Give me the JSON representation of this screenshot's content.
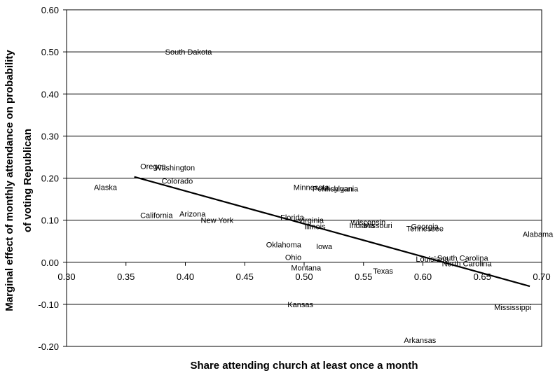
{
  "chart_data": {
    "type": "scatter",
    "title": "",
    "xlabel": "Share attending church at least once a month",
    "ylabel": "Marginal effect of monthly attendance on probability of voting Republican",
    "ylabel_lines": [
      "Marginal effect of monthly attendance on probability",
      "of voting Republican"
    ],
    "xlim": [
      0.3,
      0.7
    ],
    "ylim": [
      -0.2,
      0.6
    ],
    "x_ticks": [
      0.3,
      0.35,
      0.4,
      0.45,
      0.5,
      0.55,
      0.6,
      0.65,
      0.7
    ],
    "x_tick_labels": [
      "0.30",
      "0.35",
      "0.40",
      "0.45",
      "0.50",
      "0.55",
      "0.60",
      "0.65",
      "0.70"
    ],
    "y_ticks": [
      -0.2,
      -0.1,
      0.0,
      0.1,
      0.2,
      0.3,
      0.4,
      0.5,
      0.6
    ],
    "y_tick_labels": [
      "-0.20",
      "-0.10",
      "0.00",
      "0.10",
      "0.20",
      "0.30",
      "0.40",
      "0.50",
      "0.60"
    ],
    "grid": "horizontal",
    "legend": "none",
    "points": [
      {
        "label": "South Dakota",
        "x": 0.383,
        "y": 0.5
      },
      {
        "label": "Oregon",
        "x": 0.362,
        "y": 0.228
      },
      {
        "label": "Washington",
        "x": 0.374,
        "y": 0.225
      },
      {
        "label": "Colorado",
        "x": 0.38,
        "y": 0.193
      },
      {
        "label": "Alaska",
        "x": 0.323,
        "y": 0.178
      },
      {
        "label": "California",
        "x": 0.362,
        "y": 0.112
      },
      {
        "label": "Arizona",
        "x": 0.395,
        "y": 0.115
      },
      {
        "label": "New York",
        "x": 0.413,
        "y": 0.1
      },
      {
        "label": "Minnesota",
        "x": 0.491,
        "y": 0.178
      },
      {
        "label": "Pennsylvania",
        "x": 0.507,
        "y": 0.175
      },
      {
        "label": "Michigan",
        "x": 0.515,
        "y": 0.175
      },
      {
        "label": "Florida",
        "x": 0.48,
        "y": 0.107
      },
      {
        "label": "Virginia",
        "x": 0.495,
        "y": 0.1
      },
      {
        "label": "Illinois",
        "x": 0.5,
        "y": 0.085
      },
      {
        "label": "Wisconsin",
        "x": 0.539,
        "y": 0.095
      },
      {
        "label": "Indiana",
        "x": 0.538,
        "y": 0.088
      },
      {
        "label": "Missouri",
        "x": 0.55,
        "y": 0.088
      },
      {
        "label": "Georgia",
        "x": 0.59,
        "y": 0.085
      },
      {
        "label": "Tennessee",
        "x": 0.586,
        "y": 0.08
      },
      {
        "label": "Alabama",
        "x": 0.684,
        "y": 0.067
      },
      {
        "label": "Oklahoma",
        "x": 0.468,
        "y": 0.042
      },
      {
        "label": "Iowa",
        "x": 0.51,
        "y": 0.038
      },
      {
        "label": "Ohio",
        "x": 0.484,
        "y": 0.012
      },
      {
        "label": "Montana",
        "x": 0.489,
        "y": -0.013
      },
      {
        "label": "Louisiana",
        "x": 0.594,
        "y": 0.008
      },
      {
        "label": "South Carolina",
        "x": 0.612,
        "y": 0.01
      },
      {
        "label": "North Carolina",
        "x": 0.616,
        "y": -0.003
      },
      {
        "label": "Texas",
        "x": 0.558,
        "y": -0.02
      },
      {
        "label": "Kansas",
        "x": 0.486,
        "y": -0.1
      },
      {
        "label": "Mississippi",
        "x": 0.66,
        "y": -0.107
      },
      {
        "label": "Arkansas",
        "x": 0.584,
        "y": -0.185
      }
    ],
    "trend_line": {
      "x": [
        0.357,
        0.69
      ],
      "y": [
        0.203,
        -0.057
      ]
    }
  }
}
